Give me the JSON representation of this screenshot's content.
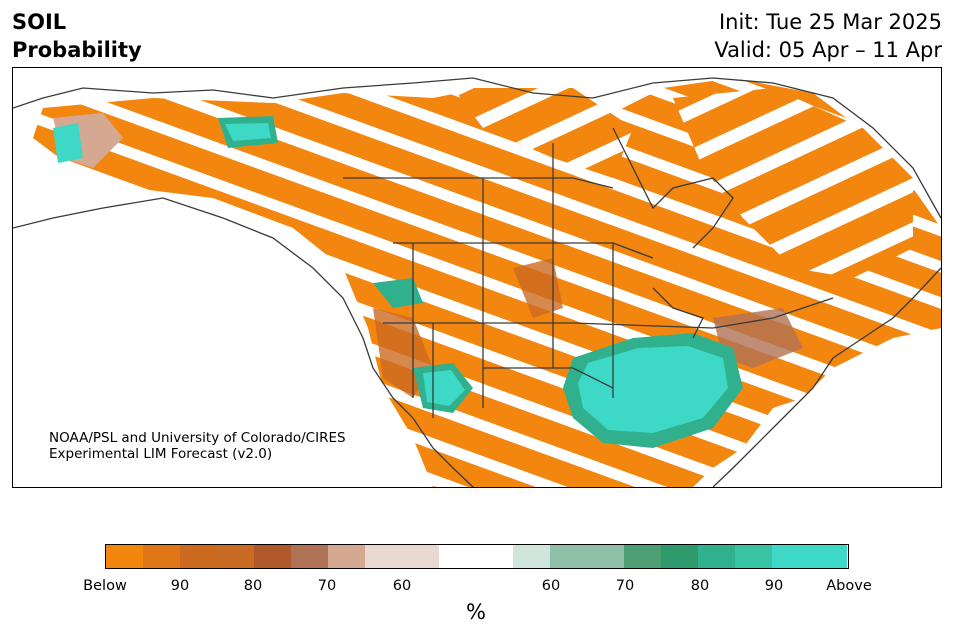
{
  "header": {
    "variable": "SOIL",
    "product": "Probability",
    "init": "Init: Tue 25 Mar 2025",
    "valid": "Valid: 05 Apr – 11 Apr"
  },
  "credit": {
    "line1": "NOAA/PSL and University of Colorado/CIRES",
    "line2": "Experimental LIM Forecast (v2.0)"
  },
  "legend": {
    "unit": "%",
    "colors": [
      "#f2860f",
      "#df7618",
      "#cc6a20",
      "#c96b22",
      "#b05a2c",
      "#b07255",
      "#d5a892",
      "#ead9d0",
      "#ffffff",
      "#ffffff",
      "#d0e6dd",
      "#8fc1a8",
      "#4e9e74",
      "#2f9a6c",
      "#30b08c",
      "#38c3a4",
      "#3dd8c6"
    ],
    "ticks": [
      "Below",
      "90",
      "80",
      "70",
      "60",
      "60",
      "70",
      "80",
      "90",
      "Above"
    ]
  },
  "map_colors": {
    "below_strong": "#f2860f",
    "below_mid": "#cc6a20",
    "below_weak": "#b07255",
    "above_strong": "#3dd8c6",
    "above_mid": "#30b08c",
    "neutral": "#ffffff",
    "boundary": "#3a3a3a"
  }
}
